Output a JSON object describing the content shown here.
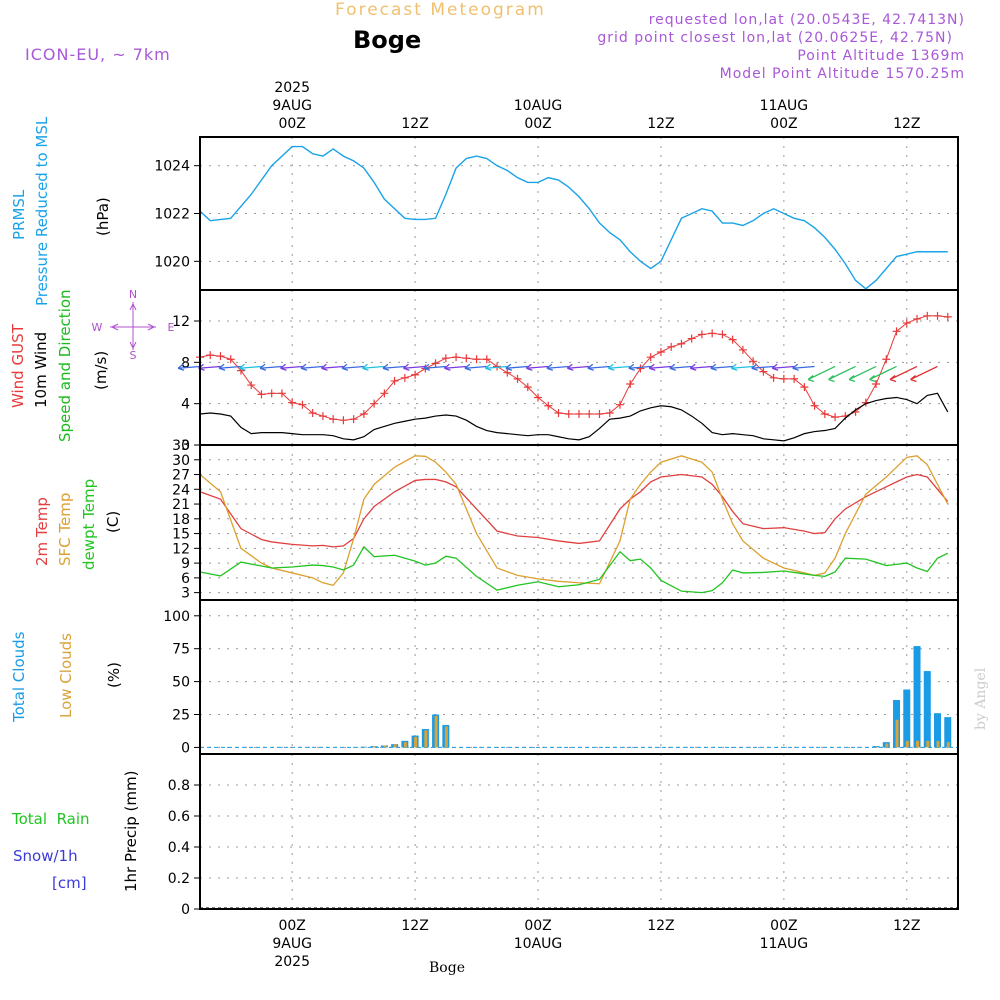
{
  "header": {
    "forecast_title": "Forecast Meteogram",
    "location": "Boge",
    "model": "ICON-EU, ~ 7km",
    "requested": "requested lon,lat (20.0543E, 42.7413N)",
    "grid_point": "grid point closest lon,lat (20.0625E, 42.75N)",
    "point_alt": "Point Altitude 1369m",
    "model_alt": "Model Point Altitude 1570.25m",
    "credit": "by Angel",
    "footer_location": "Boge"
  },
  "time_axis": {
    "top_labels": [
      {
        "h": 0,
        "lines": [
          "2025",
          "9AUG",
          "00Z"
        ]
      },
      {
        "h": 12,
        "lines": [
          "12Z"
        ]
      },
      {
        "h": 24,
        "lines": [
          "10AUG",
          "00Z"
        ]
      },
      {
        "h": 36,
        "lines": [
          "12Z"
        ]
      },
      {
        "h": 48,
        "lines": [
          "11AUG",
          "00Z"
        ]
      },
      {
        "h": 60,
        "lines": [
          "12Z"
        ]
      }
    ],
    "bottom_labels": [
      {
        "h": 0,
        "lines": [
          "00Z",
          "9AUG",
          "2025"
        ]
      },
      {
        "h": 12,
        "lines": [
          "12Z"
        ]
      },
      {
        "h": 24,
        "lines": [
          "00Z",
          "10AUG"
        ]
      },
      {
        "h": 36,
        "lines": [
          "12Z"
        ]
      },
      {
        "h": 48,
        "lines": [
          "00Z",
          "11AUG"
        ]
      },
      {
        "h": 60,
        "lines": [
          "12Z"
        ]
      }
    ]
  },
  "colors": {
    "pressure": "#1aa3e8",
    "gust": "#e83a3a",
    "wind": "#000000",
    "wind_label": "#1db91d",
    "t2m": "#e04040",
    "sfc": "#dca030",
    "dew": "#22c422",
    "total_clouds": "#1a9be6",
    "low_clouds": "#d8a33a",
    "rain_label": "#22c422",
    "snow_label": "#3a3ad8",
    "compass": "#b050d0",
    "title_orange": "#f0c070",
    "info_purple": "#a858d8"
  },
  "panels": {
    "pressure": {
      "label1": "PRMSL",
      "label2": "Pressure Reduced to MSL",
      "unit": "(hPa)"
    },
    "wind": {
      "label_gust": "Wind GUST",
      "label_wind": "10m Wind",
      "label_dir": "Speed and Direction",
      "unit": "(m/s)",
      "compass": {
        "n": "N",
        "s": "S",
        "e": "E",
        "w": "W"
      }
    },
    "temp": {
      "label_t2m": "2m Temp",
      "label_sfc": "SFC Temp",
      "label_dew": "dewpt Temp",
      "unit": "(C)"
    },
    "clouds": {
      "label_total": "Total Clouds",
      "label_low": "Low Clouds",
      "unit": "(%)"
    },
    "precip": {
      "label_rain": "Total  Rain",
      "label_snow": "Snow/1h",
      "label_snow_unit": "[cm]",
      "unit": "1hr Precip (mm)"
    }
  },
  "chart_data": [
    {
      "type": "line",
      "name": "pressure",
      "ylabel": "(hPa)",
      "ylim": [
        1018.8,
        1025.2
      ],
      "yticks": [
        1020,
        1022,
        1024
      ],
      "xlim": [
        -9,
        65
      ],
      "grid": true,
      "x": [
        -9,
        -8,
        -6,
        -4,
        -2,
        0,
        1,
        2,
        3,
        4,
        5,
        6,
        7,
        8,
        9,
        10,
        11,
        12,
        13,
        14,
        15,
        16,
        17,
        18,
        19,
        20,
        21,
        22,
        23,
        24,
        25,
        26,
        27,
        28,
        29,
        30,
        31,
        32,
        33,
        34,
        35,
        36,
        37,
        38,
        39,
        40,
        41,
        42,
        43,
        44,
        45,
        46,
        47,
        48,
        49,
        50,
        51,
        52,
        53,
        54,
        55,
        56,
        57,
        58,
        59,
        60,
        61,
        62,
        63,
        64
      ],
      "series": [
        {
          "values": [
            1022.1,
            1021.7,
            1021.8,
            1022.8,
            1024.0,
            1024.8,
            1024.8,
            1024.5,
            1024.4,
            1024.7,
            1024.4,
            1024.2,
            1023.9,
            1023.3,
            1022.6,
            1022.2,
            1021.8,
            1021.75,
            1021.75,
            1021.8,
            1022.8,
            1023.9,
            1024.3,
            1024.4,
            1024.3,
            1024.0,
            1023.8,
            1023.5,
            1023.3,
            1023.3,
            1023.5,
            1023.4,
            1023.1,
            1022.7,
            1022.2,
            1021.6,
            1021.2,
            1020.9,
            1020.4,
            1020.0,
            1019.7,
            1020.0,
            1020.9,
            1021.8,
            1022.0,
            1022.2,
            1022.1,
            1021.6,
            1021.6,
            1021.5,
            1021.7,
            1022.0,
            1022.2,
            1022.0,
            1021.8,
            1021.7,
            1021.4,
            1021.0,
            1020.5,
            1019.9,
            1019.2,
            1018.85,
            1019.2,
            1019.7,
            1020.2,
            1020.3,
            1020.4,
            1020.4,
            1020.4,
            1020.4
          ]
        }
      ]
    },
    {
      "type": "line",
      "name": "wind",
      "ylabel": "(m/s)",
      "ylim": [
        0,
        15
      ],
      "yticks": [
        0,
        4,
        8,
        12
      ],
      "xlim": [
        -9,
        65
      ],
      "grid": true,
      "x": [
        -9,
        -8,
        -7,
        -6,
        -5,
        -4,
        -3,
        -2,
        -1,
        0,
        1,
        2,
        3,
        4,
        5,
        6,
        7,
        8,
        9,
        10,
        11,
        12,
        13,
        14,
        15,
        16,
        17,
        18,
        19,
        20,
        21,
        22,
        23,
        24,
        25,
        26,
        27,
        28,
        29,
        30,
        31,
        32,
        33,
        34,
        35,
        36,
        37,
        38,
        39,
        40,
        41,
        42,
        43,
        44,
        45,
        46,
        47,
        48,
        49,
        50,
        51,
        52,
        53,
        54,
        55,
        56,
        57,
        58,
        59,
        60,
        61,
        62,
        63,
        64
      ],
      "series": [
        {
          "name": "Wind GUST",
          "values": [
            8.5,
            8.7,
            8.6,
            8.3,
            7.2,
            5.8,
            4.9,
            5.0,
            5.0,
            4.1,
            3.9,
            3.1,
            2.8,
            2.5,
            2.4,
            2.5,
            3.0,
            4.0,
            5.0,
            6.2,
            6.5,
            6.8,
            7.4,
            7.9,
            8.4,
            8.5,
            8.4,
            8.3,
            8.3,
            7.6,
            7.0,
            6.4,
            5.6,
            4.6,
            3.8,
            3.1,
            3.0,
            3.0,
            3.0,
            3.0,
            3.1,
            3.9,
            5.9,
            7.4,
            8.5,
            9.0,
            9.5,
            9.8,
            10.3,
            10.7,
            10.8,
            10.7,
            10.2,
            9.2,
            8.1,
            7.1,
            6.5,
            6.4,
            6.4,
            5.6,
            3.8,
            3.0,
            2.7,
            2.8,
            3.2,
            4.1,
            5.9,
            8.3,
            11.0,
            11.8,
            12.2,
            12.5,
            12.5,
            12.4
          ]
        },
        {
          "name": "10m Wind",
          "values": [
            3.0,
            3.1,
            3.0,
            2.8,
            1.7,
            1.1,
            1.2,
            1.2,
            1.2,
            1.1,
            1.0,
            1.0,
            1.0,
            0.9,
            0.6,
            0.5,
            0.8,
            1.5,
            1.8,
            2.1,
            2.3,
            2.5,
            2.6,
            2.8,
            2.9,
            2.8,
            2.4,
            1.8,
            1.4,
            1.2,
            1.1,
            1.0,
            0.9,
            1.0,
            1.0,
            0.8,
            0.6,
            0.5,
            0.8,
            1.6,
            2.5,
            2.6,
            2.8,
            3.3,
            3.6,
            3.8,
            3.7,
            3.4,
            2.8,
            2.1,
            1.2,
            1.0,
            1.1,
            1.0,
            0.9,
            0.6,
            0.5,
            0.4,
            0.7,
            1.1,
            1.3,
            1.4,
            1.6,
            2.6,
            3.4,
            4.0,
            4.3,
            4.5,
            4.6,
            4.4,
            4.0,
            4.8,
            5.0,
            3.2
          ]
        }
      ]
    },
    {
      "type": "line",
      "name": "temperature",
      "ylabel": "(C)",
      "ylim": [
        1.5,
        33
      ],
      "yticks": [
        3,
        6,
        9,
        12,
        15,
        18,
        21,
        24,
        27,
        30,
        33
      ],
      "xlim": [
        -9,
        65
      ],
      "grid": true,
      "x": [
        -9,
        -7,
        -5,
        -3,
        -2,
        0,
        2,
        3,
        4,
        5,
        6,
        7,
        8,
        10,
        12,
        13,
        14,
        15,
        16,
        18,
        20,
        22,
        24,
        26,
        28,
        30,
        32,
        33,
        34,
        35,
        36,
        38,
        40,
        41,
        42,
        43,
        44,
        46,
        48,
        50,
        51,
        52,
        53,
        54,
        56,
        58,
        60,
        61,
        62,
        63,
        64
      ],
      "series": [
        {
          "name": "2m Temp",
          "values": [
            23.5,
            22.0,
            16.0,
            13.8,
            13.3,
            12.8,
            12.5,
            12.6,
            12.3,
            12.5,
            14.0,
            18.0,
            20.5,
            23.5,
            25.8,
            26.0,
            26.0,
            25.5,
            24.5,
            20.0,
            15.5,
            14.5,
            14.2,
            13.5,
            13.0,
            13.5,
            20.0,
            22.0,
            23.5,
            25.5,
            26.5,
            27.0,
            26.5,
            25.0,
            22.5,
            19.5,
            17.0,
            16.0,
            16.2,
            15.5,
            15.0,
            15.2,
            18.0,
            20.0,
            22.5,
            24.5,
            26.5,
            27.0,
            26.5,
            24.0,
            21.5
          ]
        },
        {
          "name": "SFC Temp",
          "values": [
            27.0,
            23.5,
            12.0,
            9.0,
            8.0,
            7.0,
            6.0,
            5.0,
            4.5,
            7.0,
            14.0,
            22.0,
            25.0,
            28.5,
            30.8,
            30.7,
            29.5,
            27.5,
            25.0,
            15.0,
            8.0,
            6.5,
            5.8,
            5.3,
            5.0,
            4.8,
            13.5,
            22.0,
            25.0,
            27.5,
            29.5,
            30.8,
            29.5,
            27.5,
            22.0,
            17.0,
            13.5,
            10.0,
            8.0,
            7.0,
            6.5,
            7.0,
            10.0,
            15.0,
            23.0,
            26.5,
            30.5,
            30.8,
            29.0,
            25.0,
            21.0
          ]
        },
        {
          "name": "dewpt Temp",
          "values": [
            7.2,
            6.4,
            9.2,
            8.4,
            8.0,
            8.2,
            8.6,
            8.5,
            8.2,
            7.6,
            8.6,
            12.3,
            10.3,
            10.6,
            9.4,
            8.6,
            9.0,
            10.4,
            10.0,
            6.3,
            3.5,
            4.5,
            5.2,
            4.2,
            4.6,
            5.7,
            11.3,
            9.5,
            9.8,
            8.0,
            5.5,
            3.3,
            3.0,
            3.4,
            5.0,
            7.6,
            7.0,
            7.1,
            7.4,
            6.8,
            6.5,
            6.3,
            7.2,
            10.0,
            9.8,
            8.5,
            9.0,
            8.0,
            7.3,
            10.0,
            11.0
          ]
        }
      ]
    },
    {
      "type": "bar",
      "name": "clouds",
      "ylabel": "(%)",
      "ylim": [
        -5,
        112
      ],
      "yticks": [
        0,
        25,
        50,
        75,
        100
      ],
      "xlim": [
        -9,
        65
      ],
      "grid": true,
      "x": [
        7,
        8,
        9,
        10,
        11,
        12,
        13,
        14,
        15,
        57,
        58,
        59,
        60,
        61,
        62,
        63,
        64
      ],
      "series": [
        {
          "name": "Total Clouds",
          "values": [
            0.5,
            1,
            1.5,
            2.5,
            5,
            9,
            14,
            25,
            17,
            1,
            4,
            36,
            44,
            77,
            58,
            26,
            23
          ]
        },
        {
          "name": "Low Clouds",
          "values": [
            0.5,
            1,
            1.5,
            2.5,
            4,
            8,
            13,
            24,
            16,
            0.5,
            3,
            21,
            5,
            5,
            5,
            5,
            4
          ]
        }
      ]
    },
    {
      "type": "bar",
      "name": "precipitation",
      "ylabel": "1hr Precip (mm)",
      "ylim": [
        0,
        1
      ],
      "yticks": [
        0,
        0.2,
        0.4,
        0.6,
        0.8
      ],
      "xlim": [
        -9,
        65
      ],
      "grid": true,
      "x": [],
      "series": []
    }
  ]
}
